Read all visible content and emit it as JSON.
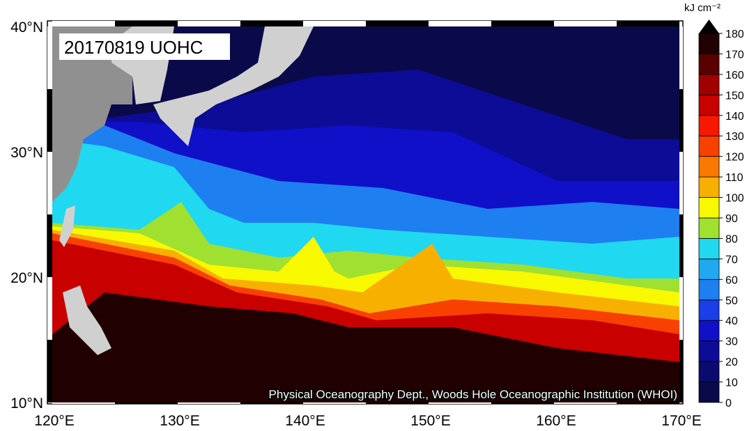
{
  "title": "20170819 UOHC",
  "credit": "Physical Oceanography Dept., Woods Hole Oceanographic Institution (WHOI)",
  "lat_labels": [
    "40°N",
    "30°N",
    "20°N",
    "10°N"
  ],
  "lon_labels": [
    "120°E",
    "130°E",
    "140°E",
    "150°E",
    "160°E",
    "170°E"
  ],
  "colorbar": {
    "unit": "kJ cm⁻²",
    "ticks": [
      0,
      10,
      20,
      30,
      40,
      50,
      60,
      70,
      80,
      90,
      100,
      110,
      120,
      130,
      140,
      150,
      160,
      170,
      180
    ],
    "colors": [
      "#0a0a4a",
      "#0b0b6e",
      "#0c0c96",
      "#1010c8",
      "#1a3ee8",
      "#1e7ff0",
      "#20a8f0",
      "#20d8f0",
      "#a0e030",
      "#f8f800",
      "#f8b000",
      "#f87800",
      "#f84000",
      "#f81800",
      "#c80000",
      "#a00000",
      "#5a0000",
      "#200000"
    ],
    "over_color": "#000000"
  }
}
